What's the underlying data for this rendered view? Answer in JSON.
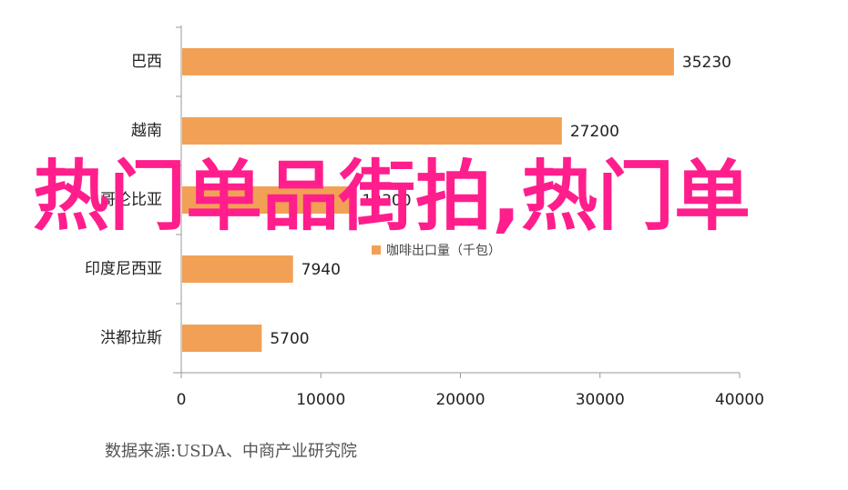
{
  "chart_data": {
    "type": "hbar",
    "series_name": "咖啡出口量（千包）",
    "categories": [
      "巴西",
      "越南",
      "哥伦比亚",
      "印度尼西亚",
      "洪都拉斯"
    ],
    "values": [
      35230,
      27200,
      12300,
      7940,
      5700
    ],
    "color": "#f2a055",
    "xlim": [
      0,
      40000
    ],
    "xticks": [
      0,
      10000,
      20000,
      30000,
      40000
    ],
    "source": "数据来源:USDA、中商产业研究院",
    "annotation": "热门单品街拍,热门单"
  }
}
